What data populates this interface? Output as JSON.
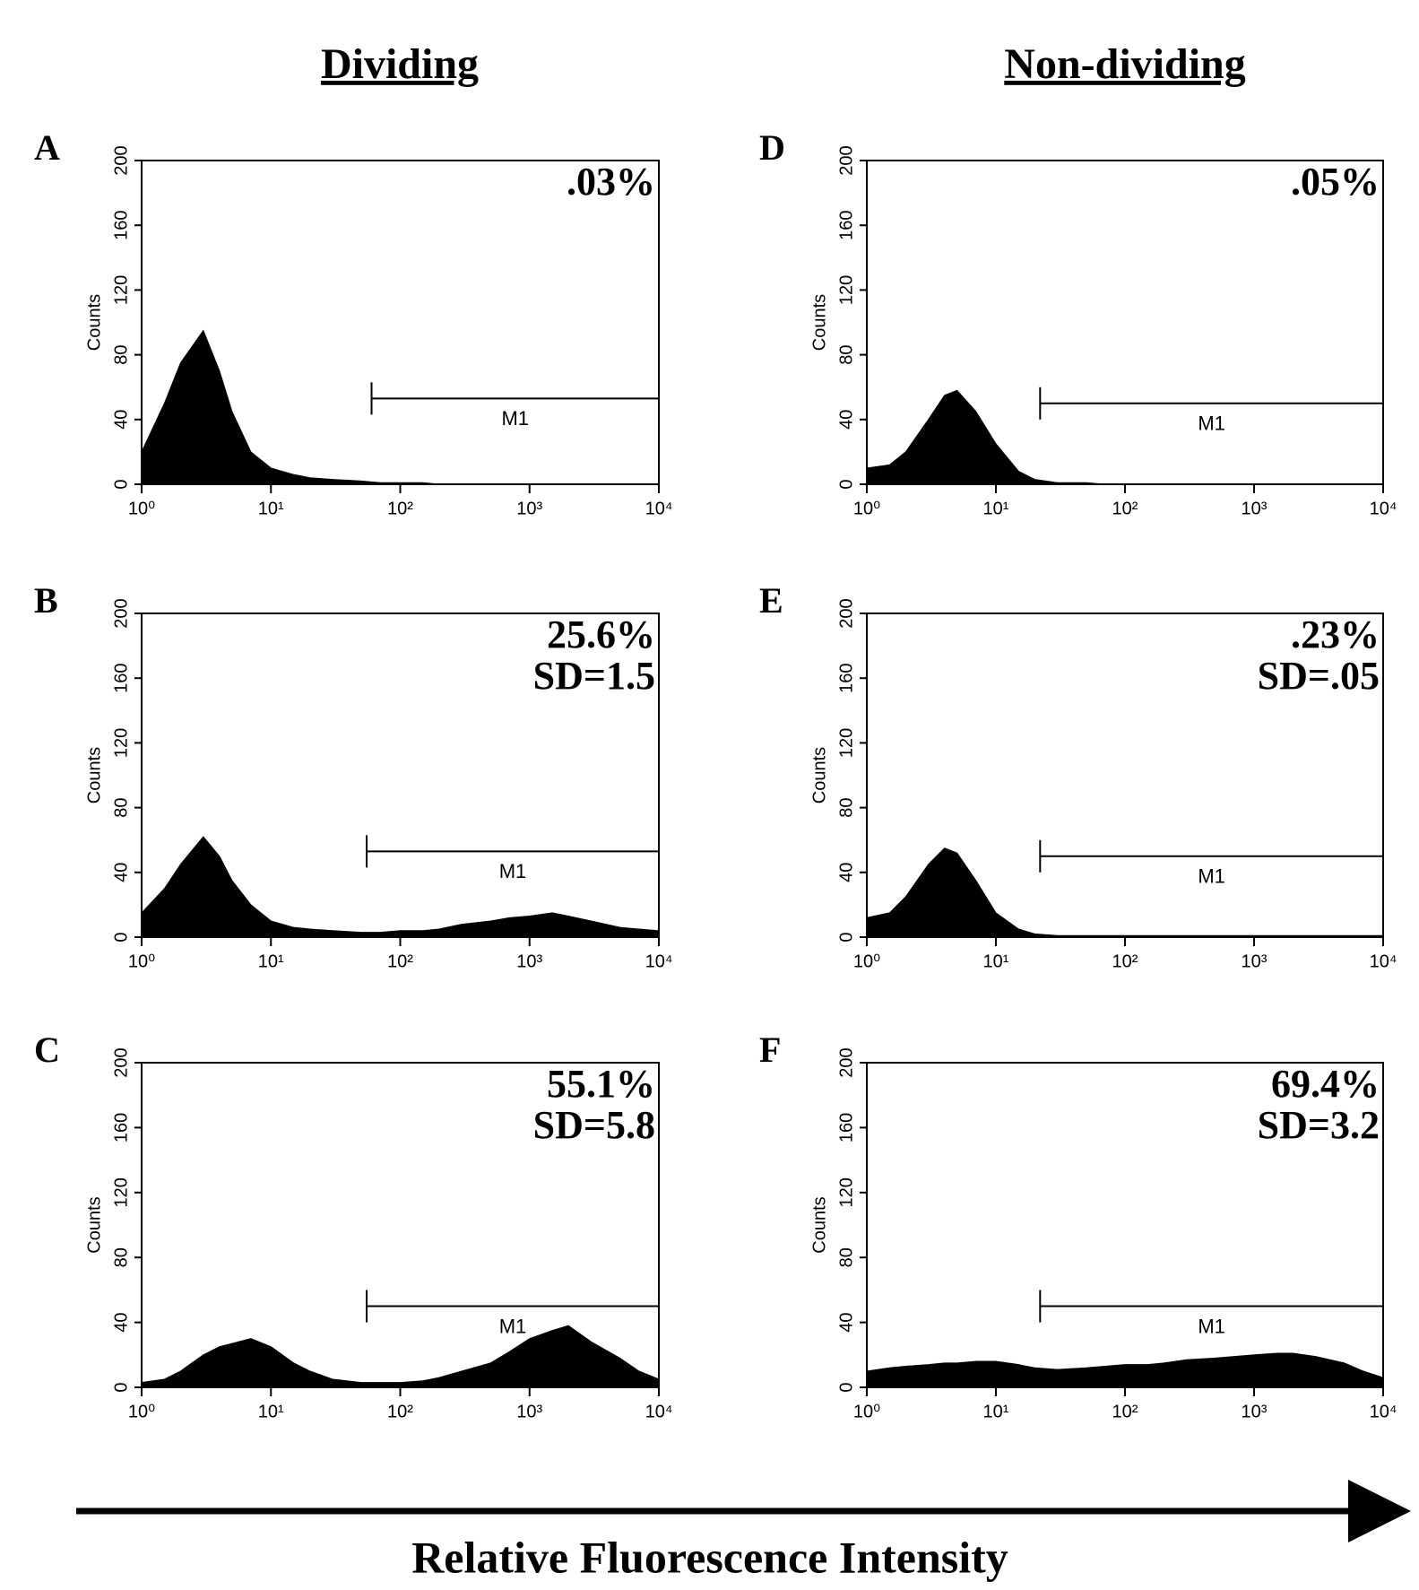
{
  "column_titles": [
    "Dividing",
    "Non-dividing"
  ],
  "x_axis_title": "Relative Fluorescence Intensity",
  "chart_data": [
    {
      "type": "area",
      "panel": "A",
      "ylabel": "Counts",
      "log_x": true,
      "color": "#000000",
      "annotation": [
        ".03%"
      ],
      "gate": {
        "label": "M1",
        "range": [
          60,
          10000
        ],
        "level": 53
      },
      "x": [
        1,
        1.5,
        2,
        3,
        4,
        5,
        7,
        10,
        15,
        20,
        30,
        50,
        70,
        100,
        150,
        200,
        300,
        500,
        700,
        1000,
        1500,
        2000,
        3000,
        5000,
        7000,
        10000
      ],
      "values": [
        20,
        50,
        75,
        95,
        70,
        45,
        20,
        10,
        6,
        4,
        3,
        2,
        1,
        1,
        1,
        0,
        0,
        0,
        0,
        0,
        0,
        0,
        0,
        0,
        0,
        0
      ],
      "xlim": [
        1,
        10000
      ],
      "ylim": [
        0,
        200
      ],
      "xticks": [
        {
          "value": 1,
          "label": "10⁰"
        },
        {
          "value": 10,
          "label": "10¹"
        },
        {
          "value": 100,
          "label": "10²"
        },
        {
          "value": 1000,
          "label": "10³"
        },
        {
          "value": 10000,
          "label": "10⁴"
        }
      ],
      "yticks": [
        0,
        40,
        80,
        120,
        160,
        200
      ]
    },
    {
      "type": "area",
      "panel": "B",
      "ylabel": "Counts",
      "log_x": true,
      "color": "#000000",
      "annotation": [
        "25.6%",
        "SD=1.5"
      ],
      "gate": {
        "label": "M1",
        "range": [
          55,
          10000
        ],
        "level": 53
      },
      "x": [
        1,
        1.5,
        2,
        3,
        4,
        5,
        7,
        10,
        15,
        20,
        30,
        50,
        70,
        100,
        150,
        200,
        300,
        500,
        700,
        1000,
        1500,
        2000,
        3000,
        5000,
        7000,
        10000
      ],
      "values": [
        15,
        30,
        45,
        62,
        50,
        35,
        20,
        10,
        6,
        5,
        4,
        3,
        3,
        4,
        4,
        5,
        8,
        10,
        12,
        13,
        15,
        13,
        10,
        6,
        5,
        4
      ],
      "xlim": [
        1,
        10000
      ],
      "ylim": [
        0,
        200
      ],
      "xticks": [
        {
          "value": 1,
          "label": "10⁰"
        },
        {
          "value": 10,
          "label": "10¹"
        },
        {
          "value": 100,
          "label": "10²"
        },
        {
          "value": 1000,
          "label": "10³"
        },
        {
          "value": 10000,
          "label": "10⁴"
        }
      ],
      "yticks": [
        0,
        40,
        80,
        120,
        160,
        200
      ]
    },
    {
      "type": "area",
      "panel": "C",
      "ylabel": "Counts",
      "log_x": true,
      "color": "#000000",
      "annotation": [
        "55.1%",
        "SD=5.8"
      ],
      "gate": {
        "label": "M1",
        "range": [
          55,
          10000
        ],
        "level": 50
      },
      "x": [
        1,
        1.5,
        2,
        3,
        4,
        5,
        7,
        10,
        15,
        20,
        30,
        50,
        70,
        100,
        150,
        200,
        300,
        500,
        700,
        1000,
        1500,
        2000,
        3000,
        5000,
        7000,
        10000
      ],
      "values": [
        3,
        5,
        10,
        20,
        25,
        27,
        30,
        25,
        15,
        10,
        5,
        3,
        3,
        3,
        4,
        6,
        10,
        15,
        22,
        30,
        35,
        38,
        28,
        18,
        10,
        5
      ],
      "xlim": [
        1,
        10000
      ],
      "ylim": [
        0,
        200
      ],
      "xticks": [
        {
          "value": 1,
          "label": "10⁰"
        },
        {
          "value": 10,
          "label": "10¹"
        },
        {
          "value": 100,
          "label": "10²"
        },
        {
          "value": 1000,
          "label": "10³"
        },
        {
          "value": 10000,
          "label": "10⁴"
        }
      ],
      "yticks": [
        0,
        40,
        80,
        120,
        160,
        200
      ]
    },
    {
      "type": "area",
      "panel": "D",
      "ylabel": "Counts",
      "log_x": true,
      "color": "#000000",
      "annotation": [
        ".05%"
      ],
      "gate": {
        "label": "M1",
        "range": [
          22,
          10000
        ],
        "level": 50
      },
      "x": [
        1,
        1.5,
        2,
        3,
        4,
        5,
        7,
        10,
        15,
        20,
        30,
        50,
        70,
        100,
        150,
        200,
        300,
        500,
        700,
        1000,
        1500,
        2000,
        3000,
        5000,
        7000,
        10000
      ],
      "values": [
        10,
        12,
        20,
        40,
        55,
        58,
        45,
        25,
        8,
        3,
        1,
        1,
        0,
        0,
        0,
        0,
        0,
        0,
        0,
        0,
        0,
        0,
        0,
        0,
        0,
        0
      ],
      "xlim": [
        1,
        10000
      ],
      "ylim": [
        0,
        200
      ],
      "xticks": [
        {
          "value": 1,
          "label": "10⁰"
        },
        {
          "value": 10,
          "label": "10¹"
        },
        {
          "value": 100,
          "label": "10²"
        },
        {
          "value": 1000,
          "label": "10³"
        },
        {
          "value": 10000,
          "label": "10⁴"
        }
      ],
      "yticks": [
        0,
        40,
        80,
        120,
        160,
        200
      ]
    },
    {
      "type": "area",
      "panel": "E",
      "ylabel": "Counts",
      "log_x": true,
      "color": "#000000",
      "annotation": [
        ".23%",
        "SD=.05"
      ],
      "gate": {
        "label": "M1",
        "range": [
          22,
          10000
        ],
        "level": 50
      },
      "x": [
        1,
        1.5,
        2,
        3,
        4,
        5,
        7,
        10,
        15,
        20,
        30,
        50,
        70,
        100,
        150,
        200,
        300,
        500,
        700,
        1000,
        1500,
        2000,
        3000,
        5000,
        7000,
        10000
      ],
      "values": [
        12,
        15,
        25,
        45,
        55,
        52,
        35,
        15,
        5,
        2,
        1,
        1,
        1,
        1,
        1,
        1,
        1,
        1,
        1,
        1,
        1,
        1,
        1,
        1,
        1,
        1
      ],
      "xlim": [
        1,
        10000
      ],
      "ylim": [
        0,
        200
      ],
      "xticks": [
        {
          "value": 1,
          "label": "10⁰"
        },
        {
          "value": 10,
          "label": "10¹"
        },
        {
          "value": 100,
          "label": "10²"
        },
        {
          "value": 1000,
          "label": "10³"
        },
        {
          "value": 10000,
          "label": "10⁴"
        }
      ],
      "yticks": [
        0,
        40,
        80,
        120,
        160,
        200
      ]
    },
    {
      "type": "area",
      "panel": "F",
      "ylabel": "Counts",
      "log_x": true,
      "color": "#000000",
      "annotation": [
        "69.4%",
        "SD=3.2"
      ],
      "gate": {
        "label": "M1",
        "range": [
          22,
          10000
        ],
        "level": 50
      },
      "x": [
        1,
        1.5,
        2,
        3,
        4,
        5,
        7,
        10,
        15,
        20,
        30,
        50,
        70,
        100,
        150,
        200,
        300,
        500,
        700,
        1000,
        1500,
        2000,
        3000,
        5000,
        7000,
        10000
      ],
      "values": [
        10,
        12,
        13,
        14,
        15,
        15,
        16,
        16,
        14,
        12,
        11,
        12,
        13,
        14,
        14,
        15,
        17,
        18,
        19,
        20,
        21,
        21,
        19,
        15,
        10,
        6
      ],
      "xlim": [
        1,
        10000
      ],
      "ylim": [
        0,
        200
      ],
      "xticks": [
        {
          "value": 1,
          "label": "10⁰"
        },
        {
          "value": 10,
          "label": "10¹"
        },
        {
          "value": 100,
          "label": "10²"
        },
        {
          "value": 1000,
          "label": "10³"
        },
        {
          "value": 10000,
          "label": "10⁴"
        }
      ],
      "yticks": [
        0,
        40,
        80,
        120,
        160,
        200
      ]
    }
  ]
}
